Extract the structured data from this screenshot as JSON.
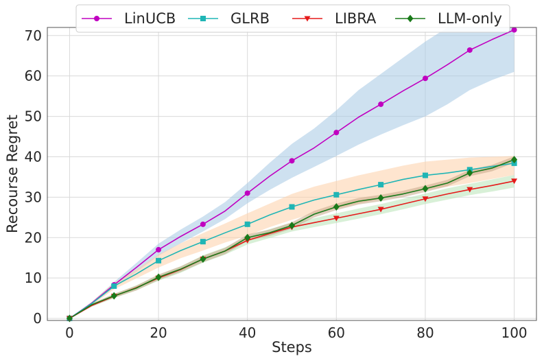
{
  "chart_data": {
    "type": "line",
    "title": "",
    "xlabel": "Steps",
    "ylabel": "Recourse Regret",
    "xlim": [
      -5,
      105
    ],
    "ylim": [
      -0.5,
      72
    ],
    "x_ticks": [
      "0",
      "20",
      "40",
      "60",
      "80",
      "100"
    ],
    "y_ticks": [
      "0",
      "10",
      "20",
      "30",
      "40",
      "50",
      "60",
      "70"
    ],
    "grid": true,
    "legend_position": "top-center",
    "x": [
      0,
      5,
      10,
      15,
      20,
      25,
      30,
      35,
      40,
      45,
      50,
      55,
      60,
      65,
      70,
      75,
      80,
      85,
      90,
      95,
      100
    ],
    "series": [
      {
        "name": "LinUCB",
        "color": "#c000c0",
        "marker": "circle",
        "values": [
          0,
          3.8,
          8.3,
          12.6,
          17.0,
          20.3,
          23.3,
          26.6,
          31.0,
          35.2,
          39.0,
          42.2,
          46.0,
          49.8,
          53.0,
          56.3,
          59.4,
          62.8,
          66.4,
          69.0,
          71.4
        ],
        "band": {
          "color": "#a6c8e3",
          "lower": [
            0,
            3.5,
            7.6,
            11.5,
            15.5,
            18.6,
            21.5,
            24.6,
            28.5,
            31.8,
            34.8,
            37.5,
            40.2,
            43.0,
            45.5,
            47.8,
            50.0,
            53.0,
            56.5,
            59.0,
            61.0
          ],
          "upper": [
            0,
            4.1,
            9.0,
            13.7,
            18.5,
            22.0,
            25.2,
            28.8,
            33.5,
            38.5,
            43.2,
            47.0,
            51.5,
            56.5,
            60.5,
            64.5,
            68.5,
            72.0,
            72.0,
            72.0,
            72.0
          ]
        }
      },
      {
        "name": "GLRB",
        "color": "#1fb5b5",
        "marker": "square",
        "values": [
          0,
          3.7,
          8.0,
          11.0,
          14.3,
          16.8,
          19.0,
          21.2,
          23.3,
          25.6,
          27.6,
          29.3,
          30.6,
          31.9,
          33.1,
          34.4,
          35.4,
          36.0,
          36.8,
          37.6,
          38.4
        ],
        "band": {
          "color": "#fdd0a8",
          "lower": [
            0,
            3.3,
            7.2,
            9.9,
            12.6,
            14.9,
            16.8,
            18.8,
            20.5,
            22.6,
            24.4,
            26.0,
            27.2,
            28.4,
            29.6,
            30.8,
            31.8,
            32.6,
            33.5,
            34.5,
            35.5
          ],
          "upper": [
            0,
            4.1,
            8.8,
            12.1,
            15.8,
            18.6,
            21.1,
            23.5,
            26.0,
            28.4,
            30.8,
            32.6,
            34.0,
            35.4,
            36.6,
            37.8,
            38.8,
            39.3,
            39.8,
            40.0,
            40.2
          ]
        }
      },
      {
        "name": "LIBRA",
        "color": "#e51a1a",
        "marker": "triangle-down",
        "values": [
          0,
          3.2,
          5.5,
          7.6,
          10.0,
          12.1,
          14.7,
          16.7,
          19.3,
          21.0,
          22.6,
          23.7,
          24.8,
          25.9,
          27.0,
          28.3,
          29.6,
          30.8,
          31.9,
          32.9,
          34.0
        ],
        "band": {
          "color": "#b8e3b6",
          "lower": [
            0,
            2.9,
            5.0,
            7.0,
            9.3,
            11.3,
            13.8,
            15.8,
            18.3,
            19.9,
            21.5,
            22.6,
            23.6,
            24.7,
            25.8,
            27.0,
            28.3,
            29.4,
            30.5,
            31.4,
            32.4
          ],
          "upper": [
            0,
            3.5,
            6.0,
            8.2,
            10.7,
            12.9,
            15.6,
            17.6,
            20.3,
            22.1,
            23.7,
            24.8,
            26.0,
            27.2,
            28.3,
            29.6,
            30.9,
            32.2,
            33.3,
            34.4,
            35.5
          ]
        }
      },
      {
        "name": "LLM-only",
        "color": "#1a7a1a",
        "marker": "diamond",
        "values": [
          0,
          3.4,
          5.6,
          7.5,
          10.2,
          12.2,
          14.7,
          16.7,
          20.0,
          21.2,
          23.0,
          25.8,
          27.6,
          29.0,
          29.8,
          30.8,
          32.1,
          33.5,
          36.0,
          37.2,
          39.3
        ],
        "band": {
          "color": "#c7a889",
          "lower": [
            0,
            3.1,
            5.1,
            6.9,
            9.5,
            11.5,
            13.9,
            15.9,
            19.2,
            20.4,
            22.2,
            25.0,
            26.8,
            28.2,
            29.0,
            30.0,
            31.3,
            32.7,
            35.2,
            36.4,
            38.5
          ],
          "upper": [
            0,
            3.7,
            6.1,
            8.1,
            10.9,
            12.9,
            15.5,
            17.5,
            20.8,
            22.0,
            23.8,
            26.6,
            28.4,
            29.8,
            30.6,
            31.6,
            32.9,
            34.3,
            36.8,
            38.0,
            40.1
          ]
        }
      }
    ],
    "marker_x": [
      0,
      10,
      20,
      30,
      40,
      50,
      60,
      70,
      80,
      90,
      100
    ]
  }
}
